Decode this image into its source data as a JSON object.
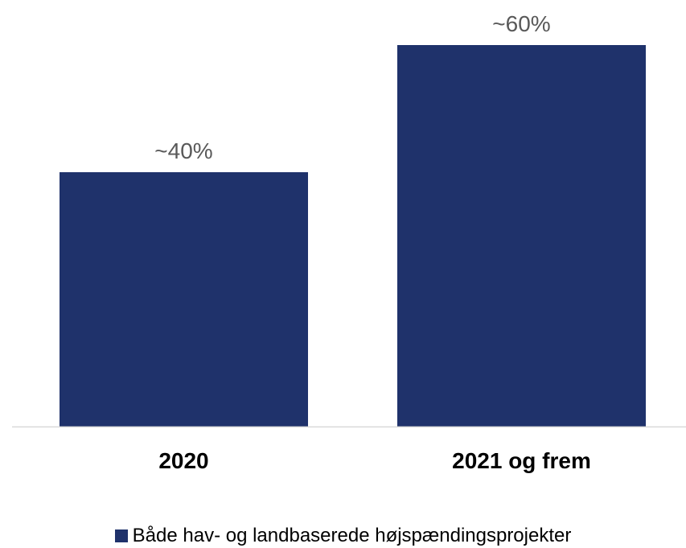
{
  "chart_data": {
    "type": "bar",
    "categories": [
      "2020",
      "2021 og frem"
    ],
    "series": [
      {
        "name": "Både hav- og landbaserede højspændingsprojekter",
        "values": [
          40,
          60
        ],
        "data_labels": [
          "~40%",
          "~60%"
        ],
        "color": "#1f326b"
      }
    ],
    "ylim": [
      0,
      60
    ],
    "grid": false,
    "legend_position": "bottom",
    "axis_color": "#d9d9d9"
  }
}
